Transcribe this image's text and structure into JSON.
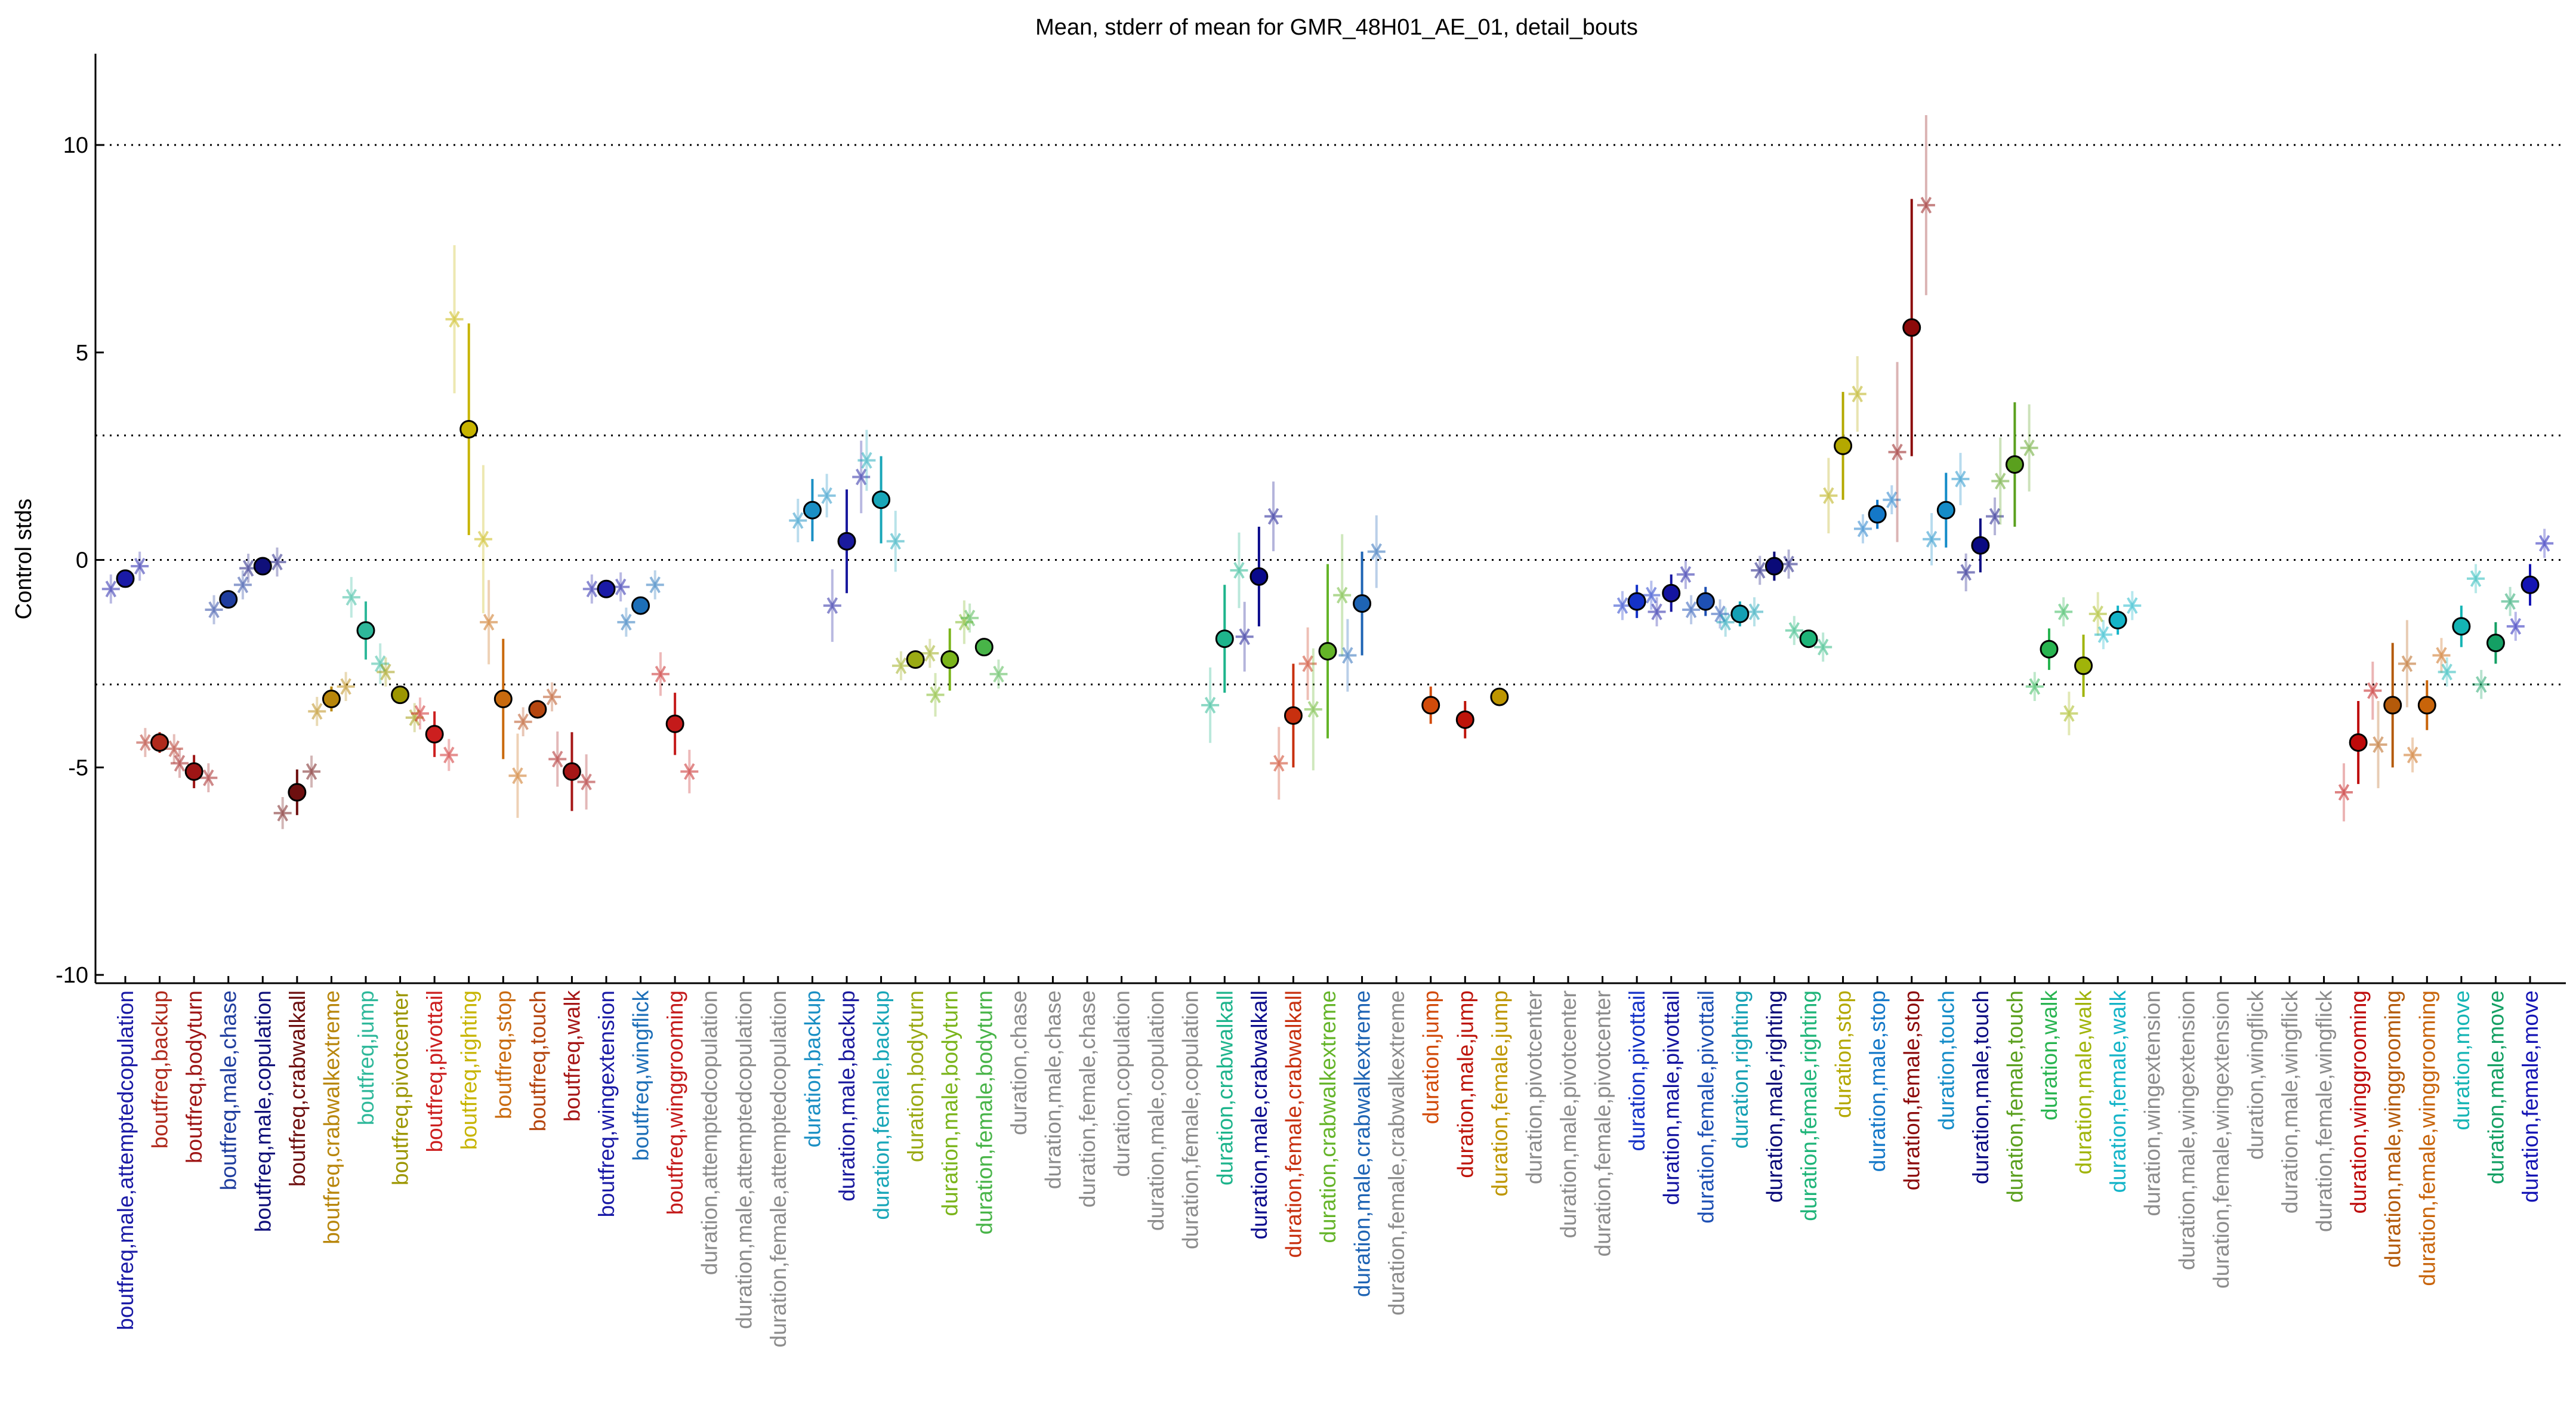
{
  "chart_data": {
    "type": "scatter",
    "title": "Mean, stderr of mean for GMR_48H01_AE_01, detail_bouts",
    "xlabel": "",
    "ylabel": "Control stds",
    "ylim": [
      -10.2,
      12.2
    ],
    "yticks": [
      -10,
      -5,
      0,
      5,
      10
    ],
    "hlines": [
      10,
      3,
      0,
      -3
    ],
    "grid": false,
    "categories": [
      {
        "label": "boutfreq,male,attemptedcopulation",
        "color": "#1a1aa6",
        "mean": -0.45,
        "se": 0.05,
        "male": -0.7,
        "female": -0.15
      },
      {
        "label": "boutfreq,backup",
        "color": "#b02a1c",
        "mean": -4.4,
        "se": 0.25,
        "male": -4.4,
        "female": -4.55
      },
      {
        "label": "boutfreq,bodyturn",
        "color": "#9e1515",
        "mean": -5.1,
        "se": 0.4,
        "male": -4.9,
        "female": -5.25
      },
      {
        "label": "boutfreq,male,chase",
        "color": "#1f3d9e",
        "mean": -0.95,
        "se": 0.1,
        "male": -1.2,
        "female": -0.6
      },
      {
        "label": "boutfreq,male,copulation",
        "color": "#10107a",
        "mean": -0.15,
        "se": 0.05,
        "male": -0.2,
        "female": -0.05
      },
      {
        "label": "boutfreq,crabwalkall",
        "color": "#6e0f0f",
        "mean": -5.6,
        "se": 0.55,
        "male": -6.1,
        "female": -5.1
      },
      {
        "label": "boutfreq,crabwalkextreme",
        "color": "#b8860b",
        "mean": -3.35,
        "se": 0.3,
        "male": -3.65,
        "female": -3.05
      },
      {
        "label": "boutfreq,jump",
        "color": "#2eb89a",
        "mean": -1.7,
        "se": 0.7,
        "male": -0.9,
        "female": -2.5
      },
      {
        "label": "boutfreq,pivotcenter",
        "color": "#9c9600",
        "mean": -3.25,
        "se": 0.15,
        "male": -2.7,
        "female": -3.8
      },
      {
        "label": "boutfreq,pivottail",
        "color": "#cc1f1f",
        "mean": -4.2,
        "se": 0.55,
        "male": -3.7,
        "female": -4.7
      },
      {
        "label": "boutfreq,righting",
        "color": "#c7b400",
        "mean": 3.15,
        "se": 2.55,
        "male": 5.8,
        "female": 0.5
      },
      {
        "label": "boutfreq,stop",
        "color": "#c96a0e",
        "mean": -3.35,
        "se": 1.45,
        "male": -1.5,
        "female": -5.2
      },
      {
        "label": "boutfreq,touch",
        "color": "#b5460f",
        "mean": -3.6,
        "se": 0.2,
        "male": -3.9,
        "female": -3.3
      },
      {
        "label": "boutfreq,walk",
        "color": "#a61616",
        "mean": -5.1,
        "se": 0.95,
        "male": -4.8,
        "female": -5.35
      },
      {
        "label": "boutfreq,wingextension",
        "color": "#1a1aa6",
        "mean": -0.7,
        "se": 0.05,
        "male": -0.7,
        "female": -0.65
      },
      {
        "label": "boutfreq,wingflick",
        "color": "#1d6fb8",
        "mean": -1.1,
        "se": 0.2,
        "male": -1.5,
        "female": -0.6
      },
      {
        "label": "boutfreq,winggrooming",
        "color": "#c41a1a",
        "mean": -3.95,
        "se": 0.75,
        "male": -2.75,
        "female": -5.1
      },
      {
        "label": "duration,attemptedcopulation",
        "color": "#8c8c8c",
        "mean": null
      },
      {
        "label": "duration,male,attemptedcopulation",
        "color": "#8c8c8c",
        "mean": null
      },
      {
        "label": "duration,female,attemptedcopulation",
        "color": "#8c8c8c",
        "mean": null
      },
      {
        "label": "duration,backup",
        "color": "#1a8fc4",
        "mean": 1.2,
        "se": 0.75,
        "male": 0.95,
        "female": 1.55
      },
      {
        "label": "duration,male,backup",
        "color": "#1a1a9e",
        "mean": 0.45,
        "se": 1.25,
        "male": -1.1,
        "female": 2.0
      },
      {
        "label": "duration,female,backup",
        "color": "#18a6b8",
        "mean": 1.45,
        "se": 1.05,
        "male": 2.4,
        "female": 0.45
      },
      {
        "label": "duration,bodyturn",
        "color": "#9aaa14",
        "mean": -2.4,
        "se": 0.2,
        "male": -2.55,
        "female": -2.25
      },
      {
        "label": "duration,male,bodyturn",
        "color": "#7ab41a",
        "mean": -2.4,
        "se": 0.75,
        "male": -3.25,
        "female": -1.5
      },
      {
        "label": "duration,female,bodyturn",
        "color": "#48b448",
        "mean": -2.1,
        "se": 0.1,
        "male": -1.4,
        "female": -2.75
      },
      {
        "label": "duration,chase",
        "color": "#8c8c8c",
        "mean": null
      },
      {
        "label": "duration,male,chase",
        "color": "#8c8c8c",
        "mean": null
      },
      {
        "label": "duration,female,chase",
        "color": "#8c8c8c",
        "mean": null
      },
      {
        "label": "duration,copulation",
        "color": "#8c8c8c",
        "mean": null
      },
      {
        "label": "duration,male,copulation",
        "color": "#8c8c8c",
        "mean": null
      },
      {
        "label": "duration,female,copulation",
        "color": "#8c8c8c",
        "mean": null
      },
      {
        "label": "duration,crabwalkall",
        "color": "#1eb48c",
        "mean": -1.9,
        "se": 1.3,
        "male": -3.5,
        "female": -0.25
      },
      {
        "label": "duration,male,crabwalkall",
        "color": "#0a0a8c",
        "mean": -0.4,
        "se": 1.2,
        "male": -1.85,
        "female": 1.05
      },
      {
        "label": "duration,female,crabwalkall",
        "color": "#c8300f",
        "mean": -3.75,
        "se": 1.25,
        "male": -4.9,
        "female": -2.5
      },
      {
        "label": "duration,crabwalkextreme",
        "color": "#64b428",
        "mean": -2.2,
        "se": 2.1,
        "male": -3.6,
        "female": -0.85
      },
      {
        "label": "duration,male,crabwalkextreme",
        "color": "#1e64b4",
        "mean": -1.05,
        "se": 1.25,
        "male": -2.3,
        "female": 0.2
      },
      {
        "label": "duration,female,crabwalkextreme",
        "color": "#8c8c8c",
        "mean": null
      },
      {
        "label": "duration,jump",
        "color": "#d24b0a",
        "mean": -3.5,
        "se": 0.45,
        "male": null,
        "female": null
      },
      {
        "label": "duration,male,jump",
        "color": "#be140a",
        "mean": -3.85,
        "se": 0.45,
        "male": null,
        "female": null
      },
      {
        "label": "duration,female,jump",
        "color": "#be9600",
        "mean": -3.3,
        "se": 0.05,
        "male": null,
        "female": null
      },
      {
        "label": "duration,pivotcenter",
        "color": "#8c8c8c",
        "mean": null
      },
      {
        "label": "duration,male,pivotcenter",
        "color": "#8c8c8c",
        "mean": null
      },
      {
        "label": "duration,female,pivotcenter",
        "color": "#8c8c8c",
        "mean": null
      },
      {
        "label": "duration,pivottail",
        "color": "#1432c8",
        "mean": -1.0,
        "se": 0.4,
        "male": -1.1,
        "female": -0.85
      },
      {
        "label": "duration,male,pivottail",
        "color": "#1414a0",
        "mean": -0.8,
        "se": 0.45,
        "male": -1.25,
        "female": -0.35
      },
      {
        "label": "duration,female,pivottail",
        "color": "#1e50b4",
        "mean": -1.0,
        "se": 0.35,
        "male": -1.2,
        "female": -1.3
      },
      {
        "label": "duration,righting",
        "color": "#14a0b4",
        "mean": -1.3,
        "se": 0.3,
        "male": -1.5,
        "female": -1.25
      },
      {
        "label": "duration,male,righting",
        "color": "#0a0a78",
        "mean": -0.15,
        "se": 0.35,
        "male": -0.25,
        "female": -0.1
      },
      {
        "label": "duration,female,righting",
        "color": "#1eb478",
        "mean": -1.9,
        "se": 0.2,
        "male": -1.7,
        "female": -2.1
      },
      {
        "label": "duration,stop",
        "color": "#b4a800",
        "mean": 2.75,
        "se": 1.3,
        "male": 1.55,
        "female": 4.0
      },
      {
        "label": "duration,male,stop",
        "color": "#1478c8",
        "mean": 1.1,
        "se": 0.35,
        "male": 0.75,
        "female": 1.45
      },
      {
        "label": "duration,female,stop",
        "color": "#8c0a0a",
        "mean": 5.6,
        "se": 3.1,
        "male": 2.6,
        "female": 8.55
      },
      {
        "label": "duration,touch",
        "color": "#148cc8",
        "mean": 1.2,
        "se": 0.9,
        "male": 0.5,
        "female": 1.95
      },
      {
        "label": "duration,male,touch",
        "color": "#0a0a82",
        "mean": 0.35,
        "se": 0.65,
        "male": -0.3,
        "female": 1.05
      },
      {
        "label": "duration,female,touch",
        "color": "#5aa01e",
        "mean": 2.3,
        "se": 1.5,
        "male": 1.9,
        "female": 2.7
      },
      {
        "label": "duration,walk",
        "color": "#28b450",
        "mean": -2.15,
        "se": 0.5,
        "male": -3.05,
        "female": -1.25
      },
      {
        "label": "duration,male,walk",
        "color": "#a0b40a",
        "mean": -2.55,
        "se": 0.75,
        "male": -3.7,
        "female": -1.3
      },
      {
        "label": "duration,female,walk",
        "color": "#14b4c8",
        "mean": -1.45,
        "se": 0.35,
        "male": -1.8,
        "female": -1.1
      },
      {
        "label": "duration,wingextension",
        "color": "#8c8c8c",
        "mean": null
      },
      {
        "label": "duration,male,wingextension",
        "color": "#8c8c8c",
        "mean": null
      },
      {
        "label": "duration,female,wingextension",
        "color": "#8c8c8c",
        "mean": null
      },
      {
        "label": "duration,wingflick",
        "color": "#8c8c8c",
        "mean": null
      },
      {
        "label": "duration,male,wingflick",
        "color": "#8c8c8c",
        "mean": null
      },
      {
        "label": "duration,female,wingflick",
        "color": "#8c8c8c",
        "mean": null
      },
      {
        "label": "duration,winggrooming",
        "color": "#be0a0a",
        "mean": -4.4,
        "se": 1.0,
        "male": -5.6,
        "female": -3.15
      },
      {
        "label": "duration,male,winggrooming",
        "color": "#b45a0a",
        "mean": -3.5,
        "se": 1.5,
        "male": -4.45,
        "female": -2.5
      },
      {
        "label": "duration,female,winggrooming",
        "color": "#c8640a",
        "mean": -3.5,
        "se": 0.6,
        "male": -4.7,
        "female": -2.3
      },
      {
        "label": "duration,move",
        "color": "#14b4b4",
        "mean": -1.6,
        "se": 0.5,
        "male": -2.7,
        "female": -0.45
      },
      {
        "label": "duration,male,move",
        "color": "#14a064",
        "mean": -2.0,
        "se": 0.5,
        "male": -3.0,
        "female": -1.0
      },
      {
        "label": "duration,female,move",
        "color": "#1414b4",
        "mean": -0.6,
        "se": 0.5,
        "male": -1.6,
        "female": 0.4
      }
    ]
  }
}
